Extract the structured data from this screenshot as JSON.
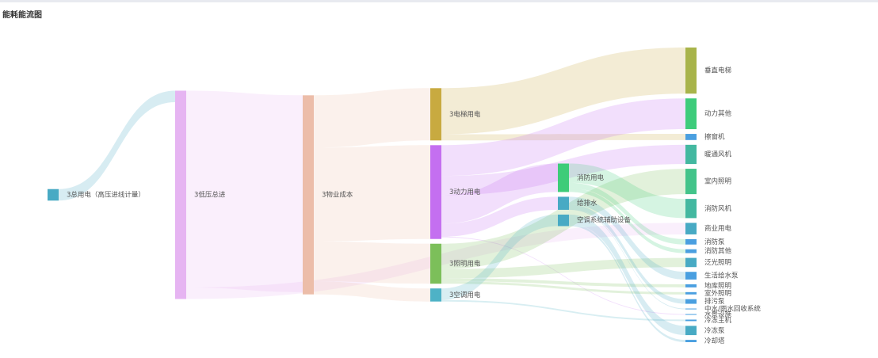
{
  "chart_data": {
    "type": "sankey",
    "title": "能耗能流图",
    "nodes": [
      {
        "name": "3总用电（高压进线计量）",
        "color": "#48aac4"
      },
      {
        "name": "3低压总进",
        "color": "#e6b4f2"
      },
      {
        "name": "3物业成本",
        "color": "#ecbda9"
      },
      {
        "name": "3电梯用电",
        "color": "#c8aa40"
      },
      {
        "name": "3动力用电",
        "color": "#c46ff0"
      },
      {
        "name": "3照明用电",
        "color": "#7cbf5a"
      },
      {
        "name": "3空调用电",
        "color": "#4eb2c6"
      },
      {
        "name": "消防用电",
        "color": "#3ecc79"
      },
      {
        "name": "给排水",
        "color": "#48aac4"
      },
      {
        "name": "空调系统辅助设备",
        "color": "#48aac4"
      },
      {
        "name": "垂直电梯",
        "color": "#a8b44a"
      },
      {
        "name": "动力其他",
        "color": "#3ecc7b"
      },
      {
        "name": "擦窗机",
        "color": "#4a9fe0"
      },
      {
        "name": "暖通风机",
        "color": "#43b8a0"
      },
      {
        "name": "室内照明",
        "color": "#43c48a"
      },
      {
        "name": "消防风机",
        "color": "#43b8a0"
      },
      {
        "name": "商业用电",
        "color": "#48aac4"
      },
      {
        "name": "消防泵",
        "color": "#4a9fe0"
      },
      {
        "name": "消防其他",
        "color": "#4a9fe0"
      },
      {
        "name": "泛光照明",
        "color": "#48aac4"
      },
      {
        "name": "生活给水泵",
        "color": "#4a9fe0"
      },
      {
        "name": "地库照明",
        "color": "#4a9fe0"
      },
      {
        "name": "室外照明",
        "color": "#4a9fe0"
      },
      {
        "name": "排污泵",
        "color": "#4a9fe0"
      },
      {
        "name": "中水/雨水回收系统",
        "color": "#4a9fe0"
      },
      {
        "name": "水景设施",
        "color": "#4a9fe0"
      },
      {
        "name": "冷冻主机",
        "color": "#4a9fe0"
      },
      {
        "name": "冷冻泵",
        "color": "#48aac4"
      },
      {
        "name": "冷却塔",
        "color": "#4a9fe0"
      }
    ],
    "links": [
      {
        "source": "3总用电（高压进线计量）",
        "target": "3低压总进",
        "value": 15
      },
      {
        "source": "3低压总进",
        "target": "3物业成本",
        "value": 256
      },
      {
        "source": "3低压总进",
        "target": "商业用电",
        "value": 15
      },
      {
        "source": "3物业成本",
        "target": "3电梯用电",
        "value": 68
      },
      {
        "source": "3物业成本",
        "target": "3动力用电",
        "value": 122
      },
      {
        "source": "3物业成本",
        "target": "3照明用电",
        "value": 52
      },
      {
        "source": "3物业成本",
        "target": "3空调用电",
        "value": 17
      },
      {
        "source": "3电梯用电",
        "target": "垂直电梯",
        "value": 60
      },
      {
        "source": "3电梯用电",
        "target": "擦窗机",
        "value": 8
      },
      {
        "source": "3动力用电",
        "target": "动力其他",
        "value": 40
      },
      {
        "source": "3动力用电",
        "target": "暖通风机",
        "value": 25
      },
      {
        "source": "3动力用电",
        "target": "消防用电",
        "value": 37
      },
      {
        "source": "3动力用电",
        "target": "给排水",
        "value": 17
      },
      {
        "source": "3动力用电",
        "target": "水景设施",
        "value": 1
      },
      {
        "source": "3照明用电",
        "target": "室内照明",
        "value": 33
      },
      {
        "source": "3照明用电",
        "target": "泛光照明",
        "value": 12
      },
      {
        "source": "3照明用电",
        "target": "地库照明",
        "value": 4
      },
      {
        "source": "3照明用电",
        "target": "室外照明",
        "value": 3
      },
      {
        "source": "3空调用电",
        "target": "空调系统辅助设备",
        "value": 15
      },
      {
        "source": "3空调用电",
        "target": "冷冻主机",
        "value": 2
      },
      {
        "source": "消防用电",
        "target": "消防风机",
        "value": 25
      },
      {
        "source": "消防用电",
        "target": "消防泵",
        "value": 7
      },
      {
        "source": "消防用电",
        "target": "消防其他",
        "value": 5
      },
      {
        "source": "给排水",
        "target": "生活给水泵",
        "value": 10
      },
      {
        "source": "给排水",
        "target": "排污泵",
        "value": 6
      },
      {
        "source": "给排水",
        "target": "中水/雨水回收系统",
        "value": 1
      },
      {
        "source": "空调系统辅助设备",
        "target": "冷冻泵",
        "value": 12
      },
      {
        "source": "空调系统辅助设备",
        "target": "冷却塔",
        "value": 3
      }
    ],
    "link_opacity": 0.22
  }
}
